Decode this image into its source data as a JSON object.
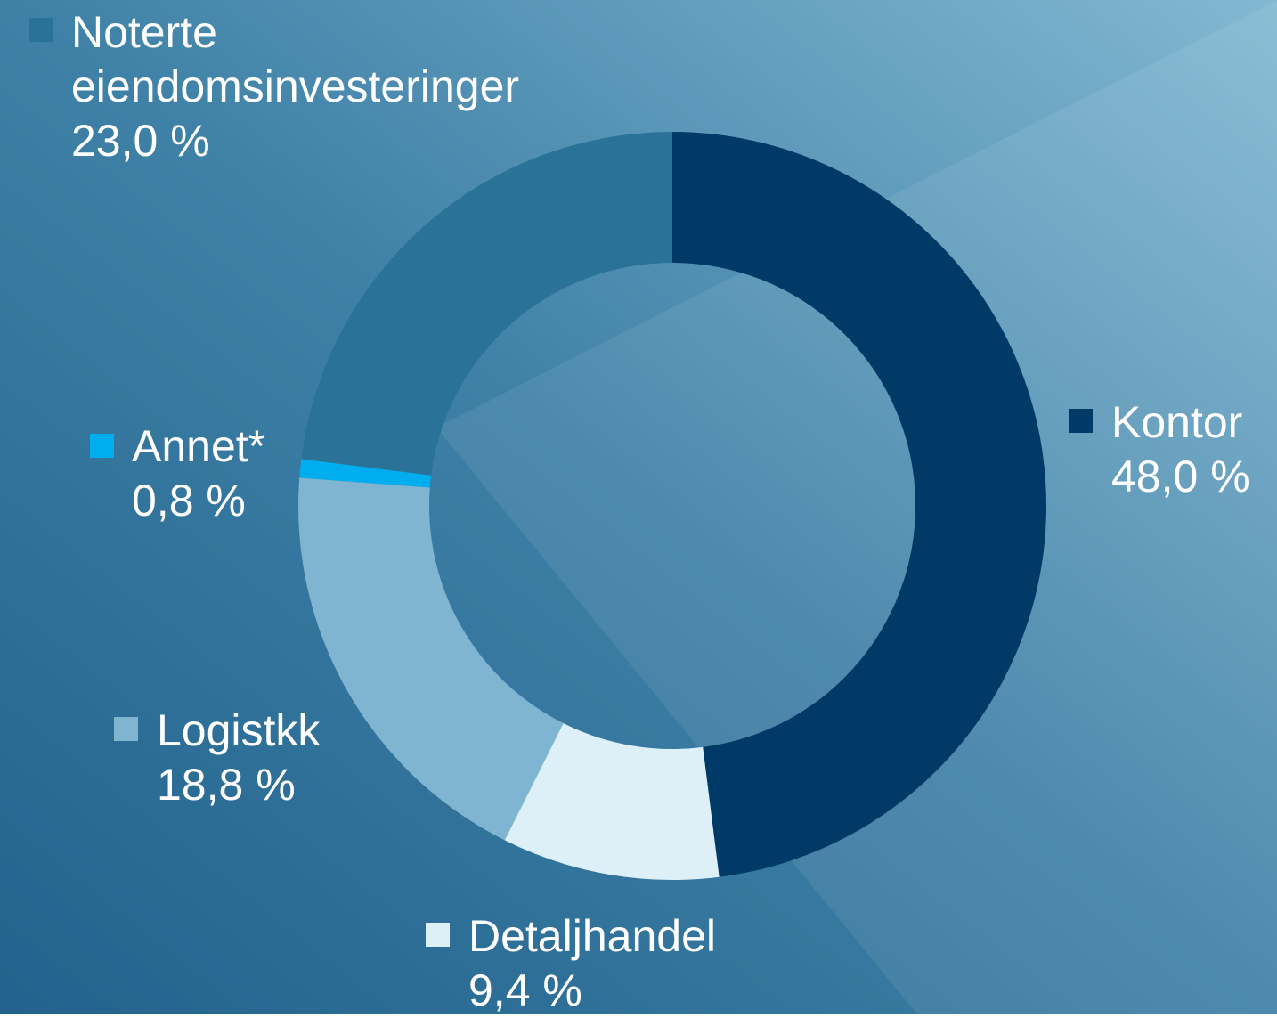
{
  "chart_data": {
    "type": "donut",
    "categories": [
      "Kontor",
      "Detaljhandel",
      "Logistkk",
      "Annet*",
      "Noterte eiendomsinvesteringer"
    ],
    "values": [
      48.0,
      9.4,
      18.8,
      0.8,
      23.0
    ],
    "value_labels": [
      "48,0 %",
      "9,4 %",
      "18,8 %",
      "0,8 %",
      "23,0 %"
    ],
    "colors": [
      "#003a66",
      "#ddf0f8",
      "#7fb5d1",
      "#00aeef",
      "#2b7298"
    ]
  }
}
